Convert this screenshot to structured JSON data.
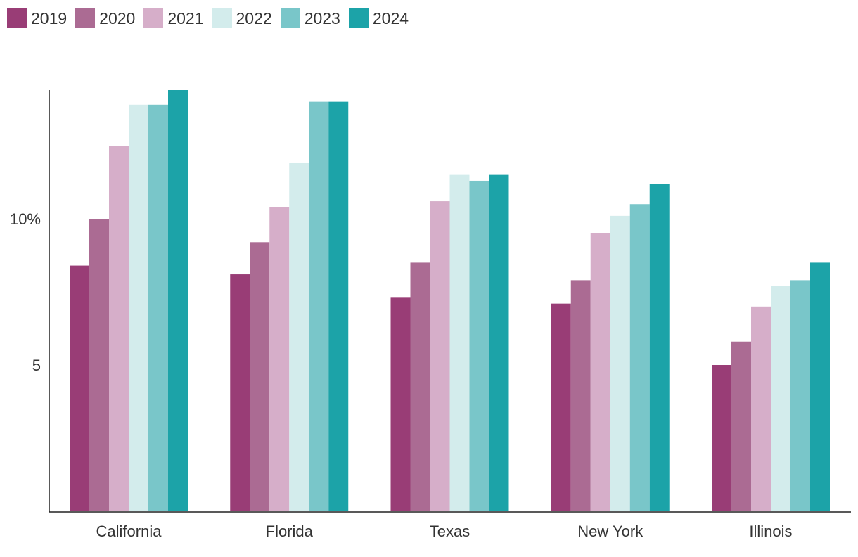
{
  "chart_data": {
    "type": "bar",
    "title": "",
    "xlabel": "",
    "ylabel": "",
    "categories": [
      "California",
      "Florida",
      "Texas",
      "New York",
      "Illinois"
    ],
    "series": [
      {
        "name": "2019",
        "color": "#993d76",
        "values": [
          8.4,
          8.1,
          7.3,
          7.1,
          5.0
        ]
      },
      {
        "name": "2020",
        "color": "#ab6b93",
        "values": [
          10.0,
          9.2,
          8.5,
          7.9,
          5.8
        ]
      },
      {
        "name": "2021",
        "color": "#d6aec9",
        "values": [
          12.5,
          10.4,
          10.6,
          9.5,
          7.0
        ]
      },
      {
        "name": "2022",
        "color": "#d3ecec",
        "values": [
          13.9,
          11.9,
          11.5,
          10.1,
          7.7
        ]
      },
      {
        "name": "2023",
        "color": "#79c6c9",
        "values": [
          13.9,
          14.0,
          11.3,
          10.5,
          7.9
        ]
      },
      {
        "name": "2024",
        "color": "#1ca3a8",
        "values": [
          14.4,
          14.0,
          11.5,
          11.2,
          8.5
        ]
      }
    ],
    "ylim": [
      0,
      14.4
    ],
    "yticks": [
      {
        "value": 10,
        "label": "10%"
      },
      {
        "value": 5,
        "label": "5"
      }
    ],
    "legend_position": "top-left",
    "grid": false
  }
}
